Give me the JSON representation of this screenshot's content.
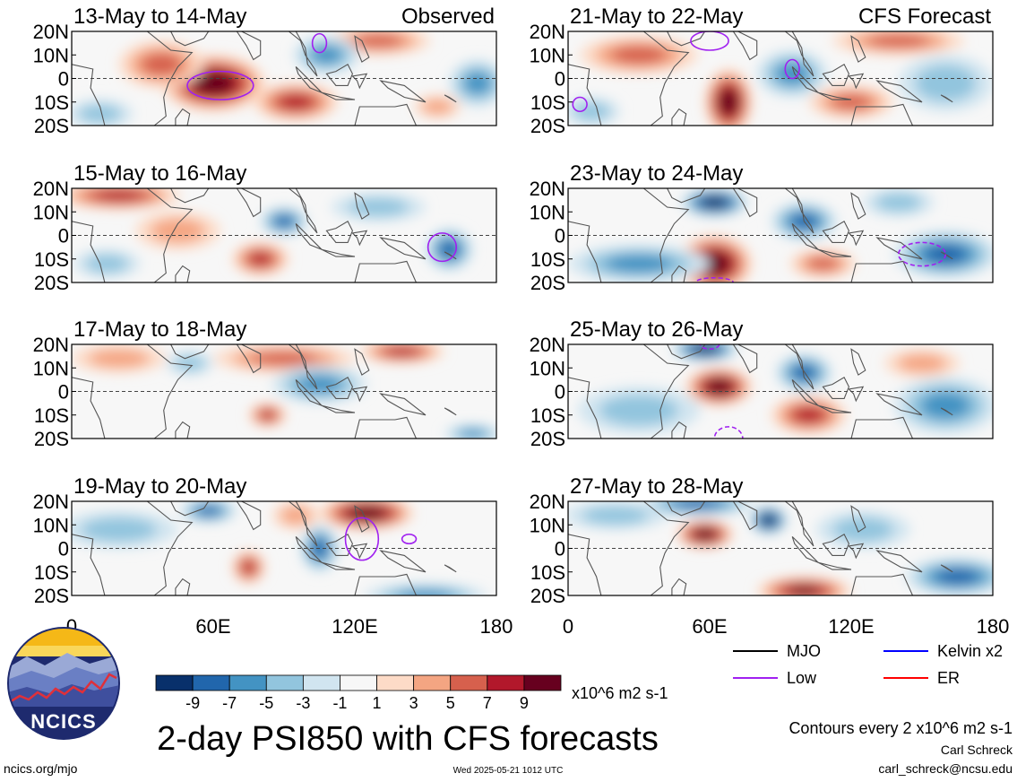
{
  "chart_data": {
    "type": "heatmap",
    "title": "2-day PSI850 with CFS forecasts",
    "colorbar": {
      "ticks": [
        "-9",
        "-7",
        "-5",
        "-3",
        "-1",
        "1",
        "3",
        "5",
        "7",
        "9"
      ],
      "units": "x10^6 m2 s-1",
      "colors": [
        "#08306b",
        "#2166ac",
        "#4393c3",
        "#92c5de",
        "#d1e5f0",
        "#f7f7f7",
        "#fddbc7",
        "#f4a582",
        "#d6604d",
        "#b2182b",
        "#67001f"
      ]
    },
    "x_ticks": [
      "0",
      "60E",
      "120E",
      "180"
    ],
    "y_ticks": [
      "20N",
      "10N",
      "0",
      "10S",
      "20S"
    ],
    "xlim": [
      0,
      180
    ],
    "ylim": [
      -20,
      20
    ],
    "panels": [
      {
        "title": "13-May to 14-May",
        "label": "Observed",
        "column": "observed",
        "blobs": [
          {
            "lon": 60,
            "lat": -2,
            "rlon": 22,
            "rlat": 12,
            "v": 6
          },
          {
            "lon": 38,
            "lat": 6,
            "rlon": 18,
            "rlat": 10,
            "v": 3
          },
          {
            "lon": 95,
            "lat": -10,
            "rlon": 18,
            "rlat": 8,
            "v": 4
          },
          {
            "lon": 130,
            "lat": 16,
            "rlon": 22,
            "rlat": 6,
            "v": 3
          },
          {
            "lon": 108,
            "lat": 10,
            "rlon": 14,
            "rlat": 8,
            "v": -3
          },
          {
            "lon": 172,
            "lat": -2,
            "rlon": 12,
            "rlat": 10,
            "v": -3
          },
          {
            "lon": 12,
            "lat": -15,
            "rlon": 14,
            "rlat": 6,
            "v": -2
          },
          {
            "lon": 155,
            "lat": -12,
            "rlon": 10,
            "rlat": 5,
            "v": 2
          }
        ],
        "contours": [
          {
            "lon": 63,
            "lat": -3,
            "rlon": 14,
            "rlat": 6
          },
          {
            "lon": 105,
            "lat": 15,
            "rlon": 3,
            "rlat": 4
          }
        ]
      },
      {
        "title": "15-May to 16-May",
        "column": "observed",
        "blobs": [
          {
            "lon": 20,
            "lat": 17,
            "rlon": 26,
            "rlat": 6,
            "v": 4
          },
          {
            "lon": 80,
            "lat": -10,
            "rlon": 12,
            "rlat": 7,
            "v": 4
          },
          {
            "lon": 90,
            "lat": 6,
            "rlon": 10,
            "rlat": 6,
            "v": -4
          },
          {
            "lon": 160,
            "lat": -6,
            "rlon": 10,
            "rlat": 9,
            "v": -4
          },
          {
            "lon": 45,
            "lat": 2,
            "rlon": 18,
            "rlat": 8,
            "v": 2
          },
          {
            "lon": 130,
            "lat": 12,
            "rlon": 20,
            "rlat": 6,
            "v": -2
          },
          {
            "lon": 15,
            "lat": -12,
            "rlon": 14,
            "rlat": 6,
            "v": -2
          }
        ],
        "contours": [
          {
            "lon": 157,
            "lat": -5,
            "rlon": 6,
            "rlat": 6
          }
        ]
      },
      {
        "title": "17-May to 18-May",
        "column": "observed",
        "blobs": [
          {
            "lon": 90,
            "lat": 14,
            "rlon": 30,
            "rlat": 6,
            "v": 3
          },
          {
            "lon": 140,
            "lat": 17,
            "rlon": 18,
            "rlat": 5,
            "v": 4
          },
          {
            "lon": 83,
            "lat": -10,
            "rlon": 8,
            "rlat": 5,
            "v": 4
          },
          {
            "lon": 105,
            "lat": 3,
            "rlon": 20,
            "rlat": 8,
            "v": -3
          },
          {
            "lon": 50,
            "lat": 12,
            "rlon": 10,
            "rlat": 5,
            "v": -2
          },
          {
            "lon": 20,
            "lat": 14,
            "rlon": 20,
            "rlat": 6,
            "v": 2
          },
          {
            "lon": 170,
            "lat": -18,
            "rlon": 12,
            "rlat": 4,
            "v": -3
          }
        ],
        "contours": []
      },
      {
        "title": "19-May to 20-May",
        "column": "observed",
        "blobs": [
          {
            "lon": 125,
            "lat": 15,
            "rlon": 20,
            "rlat": 7,
            "v": 6
          },
          {
            "lon": 75,
            "lat": -8,
            "rlon": 7,
            "rlat": 7,
            "v": 4
          },
          {
            "lon": 58,
            "lat": 16,
            "rlon": 12,
            "rlat": 5,
            "v": -4
          },
          {
            "lon": 105,
            "lat": 0,
            "rlon": 8,
            "rlat": 10,
            "v": -4
          },
          {
            "lon": 150,
            "lat": -20,
            "rlon": 26,
            "rlat": 5,
            "v": -3
          },
          {
            "lon": 20,
            "lat": 8,
            "rlon": 25,
            "rlat": 8,
            "v": -2
          },
          {
            "lon": 95,
            "lat": 14,
            "rlon": 10,
            "rlat": 6,
            "v": 2
          }
        ],
        "contours": [
          {
            "lon": 123,
            "lat": 4,
            "rlon": 7,
            "rlat": 9
          },
          {
            "lon": 143,
            "lat": 4,
            "rlon": 3,
            "rlat": 2
          }
        ]
      },
      {
        "title": "21-May to 22-May",
        "label": "CFS Forecast",
        "column": "forecast",
        "blobs": [
          {
            "lon": 68,
            "lat": -10,
            "rlon": 10,
            "rlat": 14,
            "v": 6
          },
          {
            "lon": 30,
            "lat": 10,
            "rlon": 25,
            "rlat": 8,
            "v": 3
          },
          {
            "lon": 140,
            "lat": 16,
            "rlon": 28,
            "rlat": 6,
            "v": 3
          },
          {
            "lon": 120,
            "lat": -10,
            "rlon": 18,
            "rlat": 7,
            "v": 3
          },
          {
            "lon": 95,
            "lat": 2,
            "rlon": 15,
            "rlat": 10,
            "v": -3
          },
          {
            "lon": 160,
            "lat": -2,
            "rlon": 20,
            "rlat": 12,
            "v": -2
          },
          {
            "lon": 10,
            "lat": -14,
            "rlon": 12,
            "rlat": 6,
            "v": -2
          }
        ],
        "contours": [
          {
            "lon": 60,
            "lat": 16,
            "rlon": 8,
            "rlat": 4
          },
          {
            "lon": 95,
            "lat": 4,
            "rlon": 3,
            "rlat": 4
          },
          {
            "lon": 5,
            "lat": -11,
            "rlon": 3,
            "rlat": 3
          }
        ]
      },
      {
        "title": "23-May to 24-May",
        "column": "forecast",
        "blobs": [
          {
            "lon": 62,
            "lat": 14,
            "rlon": 14,
            "rlat": 6,
            "v": -6
          },
          {
            "lon": 62,
            "lat": -12,
            "rlon": 16,
            "rlat": 12,
            "v": 6
          },
          {
            "lon": 100,
            "lat": 6,
            "rlon": 14,
            "rlat": 8,
            "v": -4
          },
          {
            "lon": 160,
            "lat": -8,
            "rlon": 22,
            "rlat": 10,
            "v": -4
          },
          {
            "lon": 30,
            "lat": -12,
            "rlon": 30,
            "rlat": 8,
            "v": -3
          },
          {
            "lon": 140,
            "lat": 14,
            "rlon": 15,
            "rlat": 6,
            "v": -2
          },
          {
            "lon": 108,
            "lat": -12,
            "rlon": 14,
            "rlat": 6,
            "v": 3
          }
        ],
        "contours": [
          {
            "lon": 62,
            "lat": -20,
            "rlon": 8,
            "rlat": 2
          },
          {
            "lon": 150,
            "lat": -8,
            "rlon": 10,
            "rlat": 5
          }
        ]
      },
      {
        "title": "25-May to 26-May",
        "column": "forecast",
        "blobs": [
          {
            "lon": 64,
            "lat": 2,
            "rlon": 14,
            "rlat": 8,
            "v": 6
          },
          {
            "lon": 58,
            "lat": 18,
            "rlon": 14,
            "rlat": 5,
            "v": -6
          },
          {
            "lon": 102,
            "lat": -10,
            "rlon": 16,
            "rlat": 8,
            "v": 4
          },
          {
            "lon": 100,
            "lat": 8,
            "rlon": 12,
            "rlat": 8,
            "v": -4
          },
          {
            "lon": 160,
            "lat": -6,
            "rlon": 22,
            "rlat": 12,
            "v": -3
          },
          {
            "lon": 30,
            "lat": -8,
            "rlon": 26,
            "rlat": 10,
            "v": -2
          },
          {
            "lon": 150,
            "lat": 12,
            "rlon": 16,
            "rlat": 6,
            "v": 2
          }
        ],
        "contours": [
          {
            "lon": 60,
            "lat": 20,
            "rlon": 4,
            "rlat": 2
          },
          {
            "lon": 68,
            "lat": -20,
            "rlon": 6,
            "rlat": 5
          }
        ]
      },
      {
        "title": "27-May to 28-May",
        "column": "forecast",
        "blobs": [
          {
            "lon": 58,
            "lat": 6,
            "rlon": 12,
            "rlat": 6,
            "v": 6
          },
          {
            "lon": 55,
            "lat": 19,
            "rlon": 24,
            "rlat": 5,
            "v": -4
          },
          {
            "lon": 85,
            "lat": 12,
            "rlon": 8,
            "rlat": 6,
            "v": -6
          },
          {
            "lon": 100,
            "lat": -18,
            "rlon": 20,
            "rlat": 6,
            "v": 5
          },
          {
            "lon": 165,
            "lat": -12,
            "rlon": 22,
            "rlat": 8,
            "v": -4
          },
          {
            "lon": 20,
            "lat": 14,
            "rlon": 22,
            "rlat": 6,
            "v": -2
          },
          {
            "lon": 125,
            "lat": 8,
            "rlon": 20,
            "rlat": 8,
            "v": -2
          }
        ],
        "contours": []
      }
    ],
    "legend": [
      {
        "name": "MJO",
        "color": "#000000"
      },
      {
        "name": "Kelvin x2",
        "color": "#0000ff"
      },
      {
        "name": "Low",
        "color": "#a020f0"
      },
      {
        "name": "ER",
        "color": "#ff0000"
      }
    ],
    "contour_note": "Contours every 2 x10^6 m2 s-1"
  },
  "logo": {
    "text": "NCICS"
  },
  "footer": {
    "left": "ncics.org/mjo",
    "center": "Wed 2025-05-21 1012 UTC",
    "author": "Carl Schreck",
    "email": "carl_schreck@ncsu.edu"
  }
}
